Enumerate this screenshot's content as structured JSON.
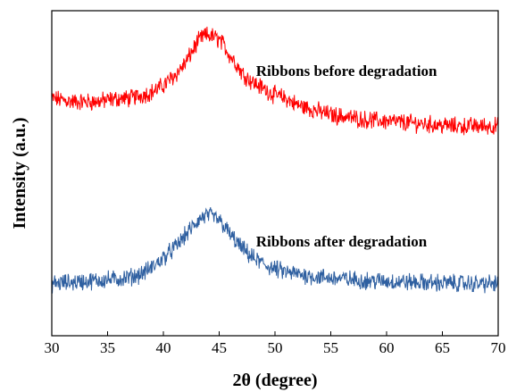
{
  "chart_data": {
    "type": "line",
    "title": "",
    "xlabel": "2θ (degree)",
    "ylabel": "Intensity (a.u.)",
    "xlim": [
      30,
      70
    ],
    "ylim": [
      0,
      1
    ],
    "xticks": [
      30,
      35,
      40,
      45,
      50,
      55,
      60,
      65,
      70
    ],
    "yticks_shown": false,
    "grid": false,
    "legend": "none",
    "series": [
      {
        "name": "Ribbons before degradation",
        "color": "#ff0000",
        "x": [
          30,
          32,
          34,
          36,
          37,
          38,
          39,
          40,
          41,
          42,
          42.5,
          43,
          43.5,
          44,
          44.5,
          45,
          45.5,
          46,
          46.5,
          47,
          48,
          49,
          50,
          51,
          52,
          53,
          54,
          55,
          56,
          58,
          60,
          62,
          64,
          66,
          68,
          70
        ],
        "y": [
          0.73,
          0.72,
          0.72,
          0.73,
          0.73,
          0.74,
          0.75,
          0.77,
          0.8,
          0.84,
          0.87,
          0.9,
          0.92,
          0.925,
          0.92,
          0.91,
          0.89,
          0.86,
          0.84,
          0.81,
          0.78,
          0.76,
          0.74,
          0.73,
          0.71,
          0.7,
          0.69,
          0.68,
          0.675,
          0.665,
          0.66,
          0.655,
          0.65,
          0.645,
          0.645,
          0.645
        ]
      },
      {
        "name": "Ribbons after degradation",
        "color": "#2e5fa0",
        "x": [
          30,
          32,
          34,
          36,
          37,
          38,
          39,
          40,
          41,
          42,
          42.5,
          43,
          43.5,
          44,
          44.5,
          45,
          45.5,
          46,
          46.5,
          47,
          48,
          49,
          50,
          51,
          52,
          53,
          54,
          55,
          56,
          58,
          60,
          62,
          64,
          66,
          68,
          70
        ],
        "y": [
          0.16,
          0.165,
          0.17,
          0.175,
          0.18,
          0.19,
          0.21,
          0.24,
          0.27,
          0.31,
          0.33,
          0.35,
          0.365,
          0.37,
          0.365,
          0.355,
          0.335,
          0.31,
          0.29,
          0.27,
          0.24,
          0.22,
          0.205,
          0.195,
          0.19,
          0.185,
          0.18,
          0.178,
          0.175,
          0.17,
          0.168,
          0.165,
          0.163,
          0.162,
          0.16,
          0.16
        ]
      }
    ],
    "annotations": [
      {
        "text": "Ribbons before degradation",
        "x": 48.3,
        "y": 0.8
      },
      {
        "text": "Ribbons after degradation",
        "x": 48.3,
        "y": 0.275
      }
    ]
  }
}
